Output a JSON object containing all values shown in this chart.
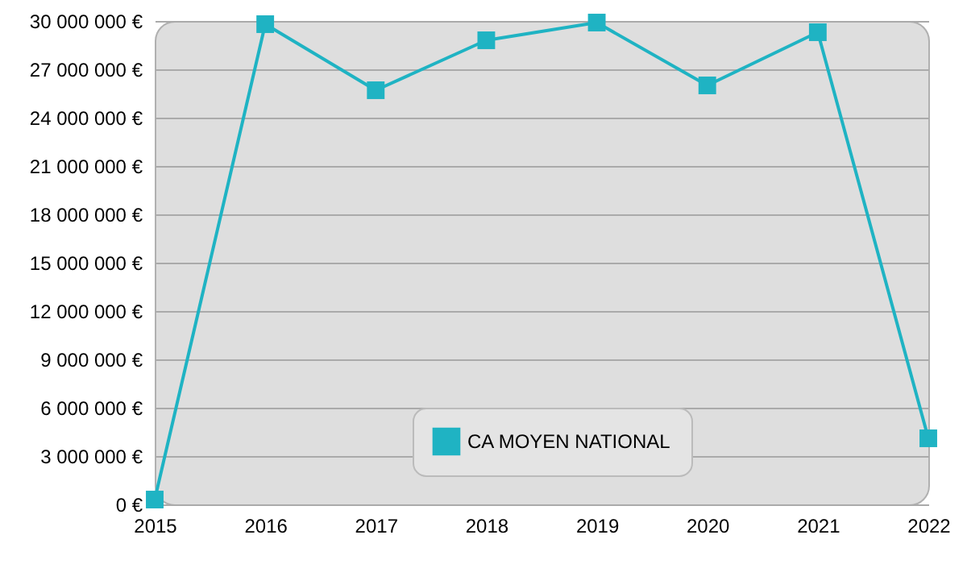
{
  "chart_data": {
    "type": "line",
    "x": [
      2015,
      2016,
      2017,
      2018,
      2019,
      2020,
      2021,
      2022
    ],
    "series": [
      {
        "name": "CA MOYEN NATIONAL",
        "color": "#1fb3c3",
        "values": [
          300000,
          29800000,
          25700000,
          28800000,
          29900000,
          26000000,
          29300000,
          4100000
        ]
      }
    ],
    "xlim": [
      2015,
      2022
    ],
    "xticks": [
      2015,
      2016,
      2017,
      2018,
      2019,
      2020,
      2021,
      2022
    ],
    "ylim": [
      0,
      30000000
    ],
    "yticks": [
      {
        "value": 0,
        "label": "0 €"
      },
      {
        "value": 3000000,
        "label": "3 000 000 €"
      },
      {
        "value": 6000000,
        "label": "6 000 000 €"
      },
      {
        "value": 9000000,
        "label": "9 000 000 €"
      },
      {
        "value": 12000000,
        "label": "12 000 000 €"
      },
      {
        "value": 15000000,
        "label": "15 000 000 €"
      },
      {
        "value": 18000000,
        "label": "18 000 000 €"
      },
      {
        "value": 21000000,
        "label": "21 000 000 €"
      },
      {
        "value": 24000000,
        "label": "24 000 000 €"
      },
      {
        "value": 27000000,
        "label": "27 000 000 €"
      },
      {
        "value": 30000000,
        "label": "30 000 000 €"
      }
    ],
    "grid": "y",
    "legend": "bottom",
    "marker": "square",
    "line_style": "solid"
  }
}
